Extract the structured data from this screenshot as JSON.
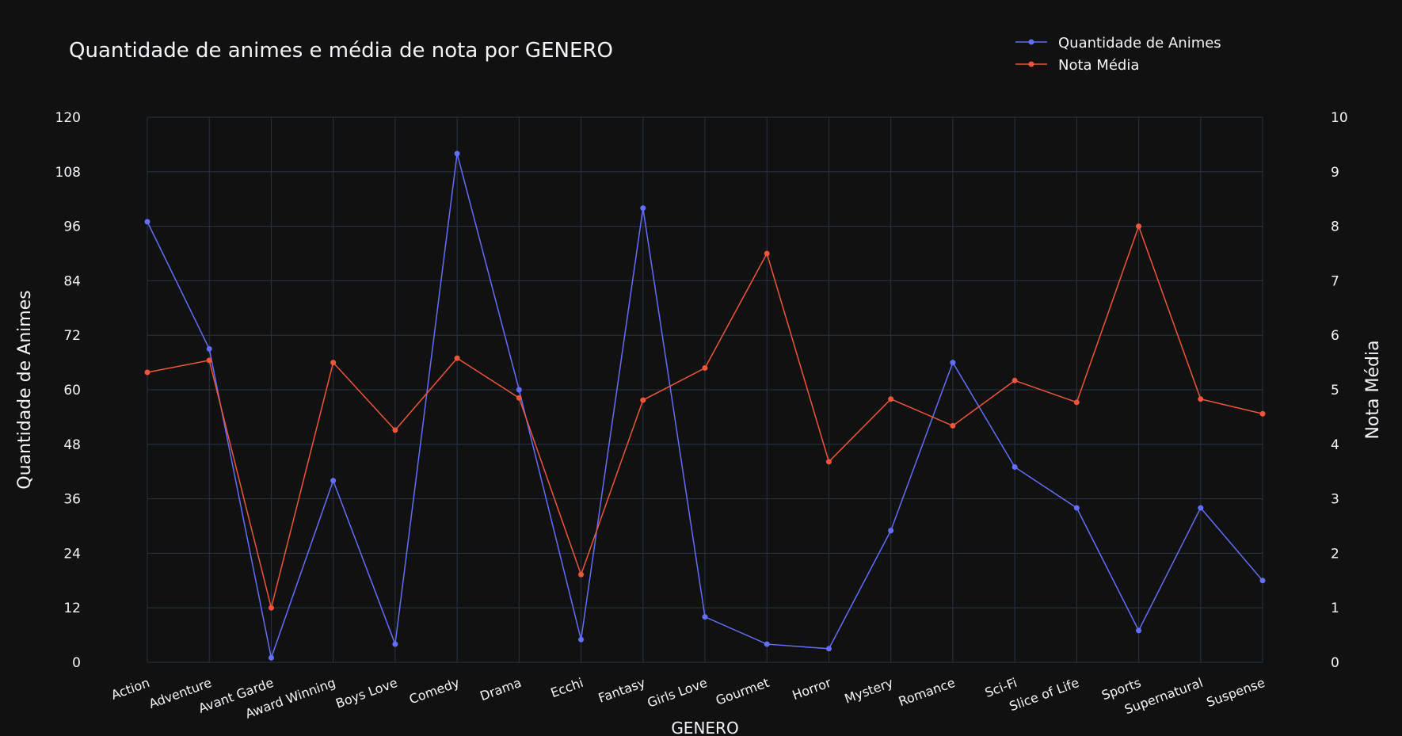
{
  "chart_data": {
    "type": "line",
    "title": "Quantidade de animes e média de nota por GENERO",
    "xlabel": "GENERO",
    "ylabel": "Quantidade de Animes",
    "y2label": "Nota Média",
    "categories": [
      "Action",
      "Adventure",
      "Avant Garde",
      "Award Winning",
      "Boys Love",
      "Comedy",
      "Drama",
      "Ecchi",
      "Fantasy",
      "Girls Love",
      "Gourmet",
      "Horror",
      "Mystery",
      "Romance",
      "Sci-Fi",
      "Slice of Life",
      "Sports",
      "Supernatural",
      "Suspense"
    ],
    "ylim": [
      0,
      120
    ],
    "y2lim": [
      0,
      10
    ],
    "yticks": [
      "0",
      "12",
      "24",
      "36",
      "48",
      "60",
      "72",
      "84",
      "96",
      "108",
      "120"
    ],
    "y2ticks": [
      "0",
      "1",
      "2",
      "3",
      "4",
      "5",
      "6",
      "7",
      "8",
      "9",
      "10"
    ],
    "grid": true,
    "legend_position": "top-right",
    "background": "#111111",
    "series": [
      {
        "name": "Quantidade de Animes",
        "axis": "left",
        "color": "#636efa",
        "values": [
          97,
          69,
          1,
          40,
          4,
          112,
          60,
          5,
          100,
          10,
          4,
          3,
          29,
          66,
          43,
          34,
          7,
          34,
          18
        ]
      },
      {
        "name": "Nota Média",
        "axis": "right",
        "color": "#ef553b",
        "values": [
          5.32,
          5.54,
          1.0,
          5.5,
          4.26,
          5.58,
          4.85,
          1.61,
          4.81,
          5.4,
          7.5,
          3.68,
          4.83,
          4.34,
          5.17,
          4.77,
          8.0,
          4.83,
          4.56
        ]
      }
    ]
  }
}
